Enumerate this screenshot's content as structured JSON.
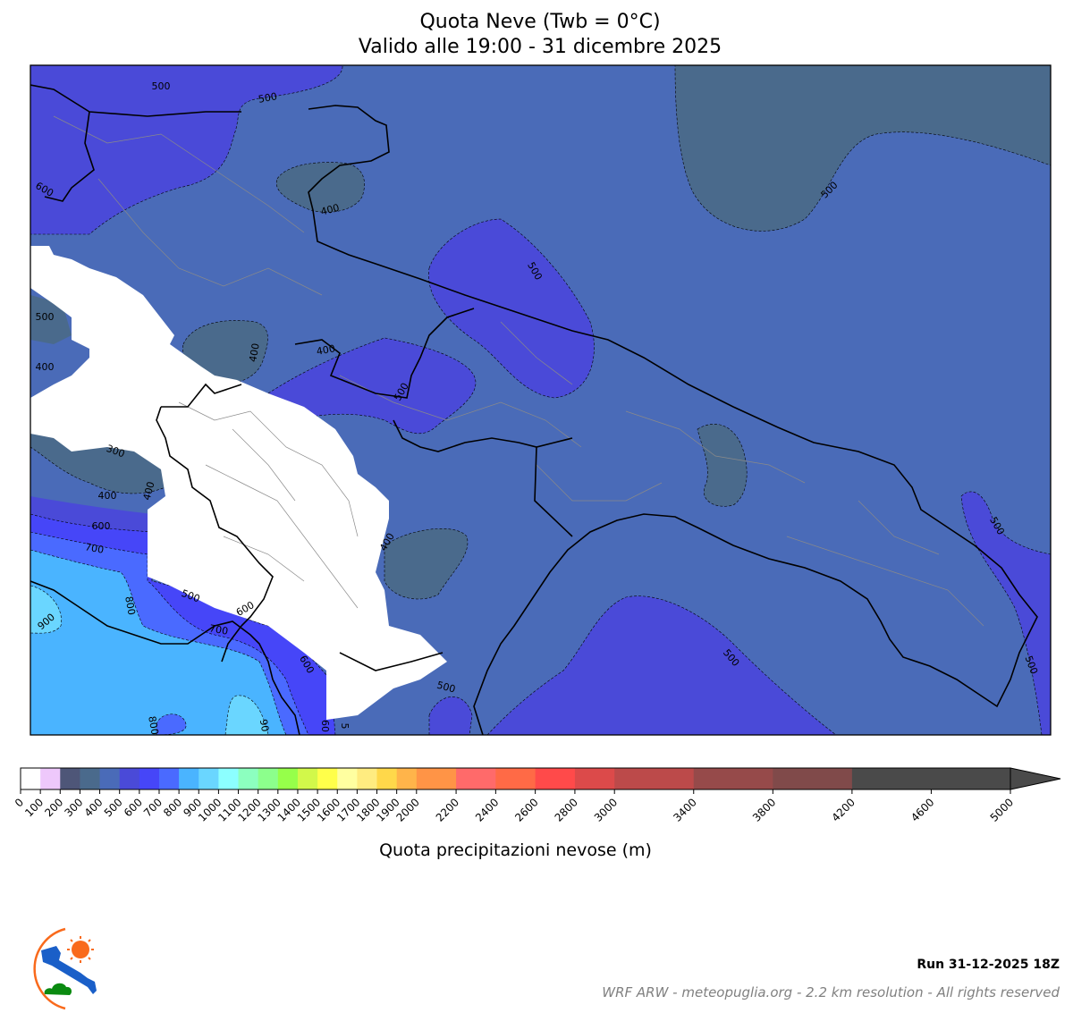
{
  "title": {
    "line1": "Quota Neve (Twb = 0°C)",
    "line2": "Valido alle 19:00 - 31 dicembre 2025"
  },
  "map": {
    "background_color": "#4a6bb8",
    "no_data_color": "#ffffff",
    "contour_labels": [
      "500",
      "500",
      "400",
      "400",
      "500",
      "400",
      "500",
      "600",
      "400",
      "300",
      "400",
      "400",
      "600",
      "700",
      "500",
      "600",
      "700",
      "800",
      "900",
      "600",
      "800",
      "90",
      "60",
      "5",
      "400",
      "500",
      "500",
      "500",
      "500",
      "500",
      "500"
    ]
  },
  "colorbar": {
    "label": "Quota precipitazioni nevose (m)",
    "range": [
      0,
      5000
    ],
    "extend": "max",
    "extend_color": "#4a4a4a",
    "bins": [
      {
        "from": 0,
        "to": 100,
        "color": "#ffffff"
      },
      {
        "from": 100,
        "to": 200,
        "color": "#eec8fb"
      },
      {
        "from": 200,
        "to": 300,
        "color": "#4e5678"
      },
      {
        "from": 300,
        "to": 400,
        "color": "#4a6a8c"
      },
      {
        "from": 400,
        "to": 500,
        "color": "#4a6bb8"
      },
      {
        "from": 500,
        "to": 600,
        "color": "#4a4ad8"
      },
      {
        "from": 600,
        "to": 700,
        "color": "#4646f8"
      },
      {
        "from": 700,
        "to": 800,
        "color": "#4a6aff"
      },
      {
        "from": 800,
        "to": 900,
        "color": "#4ab4ff"
      },
      {
        "from": 900,
        "to": 1000,
        "color": "#6ad6ff"
      },
      {
        "from": 1000,
        "to": 1100,
        "color": "#8cffff"
      },
      {
        "from": 1100,
        "to": 1200,
        "color": "#8cffbf"
      },
      {
        "from": 1200,
        "to": 1300,
        "color": "#8cff8c"
      },
      {
        "from": 1300,
        "to": 1400,
        "color": "#96ff4a"
      },
      {
        "from": 1400,
        "to": 1500,
        "color": "#d2f84a"
      },
      {
        "from": 1500,
        "to": 1600,
        "color": "#ffff4a"
      },
      {
        "from": 1600,
        "to": 1700,
        "color": "#ffffa0"
      },
      {
        "from": 1700,
        "to": 1800,
        "color": "#ffec80"
      },
      {
        "from": 1800,
        "to": 1900,
        "color": "#ffd84a"
      },
      {
        "from": 1900,
        "to": 2000,
        "color": "#ffb44a"
      },
      {
        "from": 2000,
        "to": 2200,
        "color": "#ff9446"
      },
      {
        "from": 2200,
        "to": 2400,
        "color": "#ff6a6a"
      },
      {
        "from": 2400,
        "to": 2600,
        "color": "#ff6a46"
      },
      {
        "from": 2600,
        "to": 2800,
        "color": "#ff4a4a"
      },
      {
        "from": 2800,
        "to": 3000,
        "color": "#dc4a4a"
      },
      {
        "from": 3000,
        "to": 3400,
        "color": "#bc4a4a"
      },
      {
        "from": 3400,
        "to": 3800,
        "color": "#964a4a"
      },
      {
        "from": 3800,
        "to": 4200,
        "color": "#804a4a"
      },
      {
        "from": 4200,
        "to": 5000,
        "color": "#4a4a4a"
      }
    ],
    "ticks": [
      0,
      100,
      200,
      300,
      400,
      500,
      600,
      700,
      800,
      900,
      1000,
      1100,
      1200,
      1300,
      1400,
      1500,
      1600,
      1700,
      1800,
      1900,
      2000,
      2200,
      2400,
      2600,
      2800,
      3000,
      3400,
      3800,
      4200,
      4600,
      5000
    ]
  },
  "footer": {
    "run": "Run 31-12-2025 18Z",
    "credits": "WRF ARW - meteopuglia.org - 2.2 km resolution - All rights reserved",
    "logo_colors": {
      "region": "#1a5fc8",
      "sun": "#f96a1c",
      "cloud": "#0a8a10",
      "arc": "#f96a1c"
    }
  }
}
